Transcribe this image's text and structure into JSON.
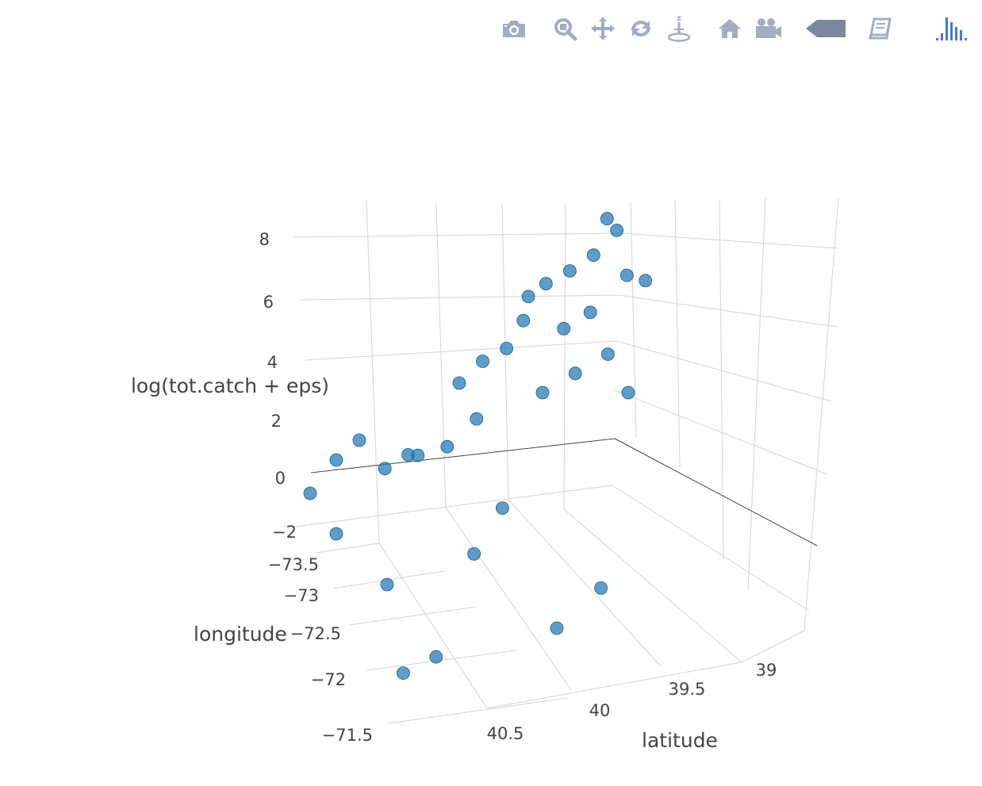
{
  "modebar": {
    "buttons": [
      {
        "name": "camera-icon",
        "label": "Download plot as a png"
      },
      {
        "name": "zoom-icon",
        "label": "Zoom"
      },
      {
        "name": "pan-icon",
        "label": "Pan"
      },
      {
        "name": "orbit-rotation-icon",
        "label": "Orbital rotation"
      },
      {
        "name": "turntable-rotation-icon",
        "label": "Turntable rotation"
      },
      {
        "name": "home-icon",
        "label": "Reset camera to default"
      },
      {
        "name": "camera-video-icon",
        "label": "Reset camera to last save"
      },
      {
        "name": "hover-tag-icon",
        "label": "Toggle show closest data on hover"
      },
      {
        "name": "book-icon",
        "label": "Show closest data on hover"
      },
      {
        "name": "plotly-logo-icon",
        "label": "Produced with Plotly"
      }
    ],
    "icon_color": "#a3adc2",
    "active_color": "#7b879e",
    "logo_color": "#447adb"
  },
  "chart_data": {
    "type": "scatter3d",
    "title": "",
    "marker_color": "#1f77b4",
    "axes": {
      "x": {
        "title": "latitude",
        "ticks": [
          "39",
          "39.5",
          "40",
          "40.5"
        ]
      },
      "y": {
        "title": "longitude",
        "ticks": [
          "−73.5",
          "−73",
          "−72.5",
          "−72",
          "−71.5"
        ]
      },
      "z": {
        "title": "log(tot.catch + eps)",
        "ticks": [
          "−2",
          "0",
          "2",
          "4",
          "6",
          "8"
        ]
      }
    },
    "points": [
      {
        "latitude": 39.05,
        "longitude": -72.9,
        "z": 8.6
      },
      {
        "latitude": 39.0,
        "longitude": -72.9,
        "z": 8.2
      },
      {
        "latitude": 39.15,
        "longitude": -72.8,
        "z": 7.6
      },
      {
        "latitude": 39.3,
        "longitude": -72.7,
        "z": 7.3
      },
      {
        "latitude": 39.45,
        "longitude": -72.6,
        "z": 7.1
      },
      {
        "latitude": 38.95,
        "longitude": -72.95,
        "z": 6.6
      },
      {
        "latitude": 38.85,
        "longitude": -72.95,
        "z": 6.4
      },
      {
        "latitude": 39.6,
        "longitude": -72.5,
        "z": 6.1
      },
      {
        "latitude": 39.55,
        "longitude": -72.6,
        "z": 6.7
      },
      {
        "latitude": 39.2,
        "longitude": -72.7,
        "z": 5.9
      },
      {
        "latitude": 39.35,
        "longitude": -72.7,
        "z": 5.4
      },
      {
        "latitude": 39.7,
        "longitude": -72.5,
        "z": 5.2
      },
      {
        "latitude": 39.85,
        "longitude": -72.4,
        "z": 5.0
      },
      {
        "latitude": 40.0,
        "longitude": -72.3,
        "z": 4.5
      },
      {
        "latitude": 39.1,
        "longitude": -72.8,
        "z": 4.3
      },
      {
        "latitude": 39.3,
        "longitude": -72.7,
        "z": 3.9
      },
      {
        "latitude": 39.5,
        "longitude": -72.6,
        "z": 3.5
      },
      {
        "latitude": 39.9,
        "longitude": -72.4,
        "z": 3.1
      },
      {
        "latitude": 40.1,
        "longitude": -72.2,
        "z": 2.6
      },
      {
        "latitude": 39.0,
        "longitude": -72.8,
        "z": 3.0
      },
      {
        "latitude": 40.3,
        "longitude": -72.3,
        "z": 2.2
      },
      {
        "latitude": 40.5,
        "longitude": -72.7,
        "z": 2.0
      },
      {
        "latitude": 40.4,
        "longitude": -72.5,
        "z": 1.4
      },
      {
        "latitude": 40.6,
        "longitude": -72.9,
        "z": 1.0
      },
      {
        "latitude": 40.2,
        "longitude": -72.6,
        "z": 1.6
      },
      {
        "latitude": 39.8,
        "longitude": -72.3,
        "z": 0.3
      },
      {
        "latitude": 40.0,
        "longitude": -72.1,
        "z": -0.8
      },
      {
        "latitude": 40.5,
        "longitude": -72.0,
        "z": -1.5
      },
      {
        "latitude": 39.3,
        "longitude": -72.2,
        "z": -2.3
      },
      {
        "latitude": 39.6,
        "longitude": -71.9,
        "z": -3.0
      },
      {
        "latitude": 40.3,
        "longitude": -71.7,
        "z": -3.4
      },
      {
        "latitude": 40.5,
        "longitude": -71.6,
        "z": -3.7
      },
      {
        "latitude": 40.7,
        "longitude": -72.4,
        "z": -0.5
      },
      {
        "latitude": 40.8,
        "longitude": -72.6,
        "z": 0.5
      }
    ]
  }
}
